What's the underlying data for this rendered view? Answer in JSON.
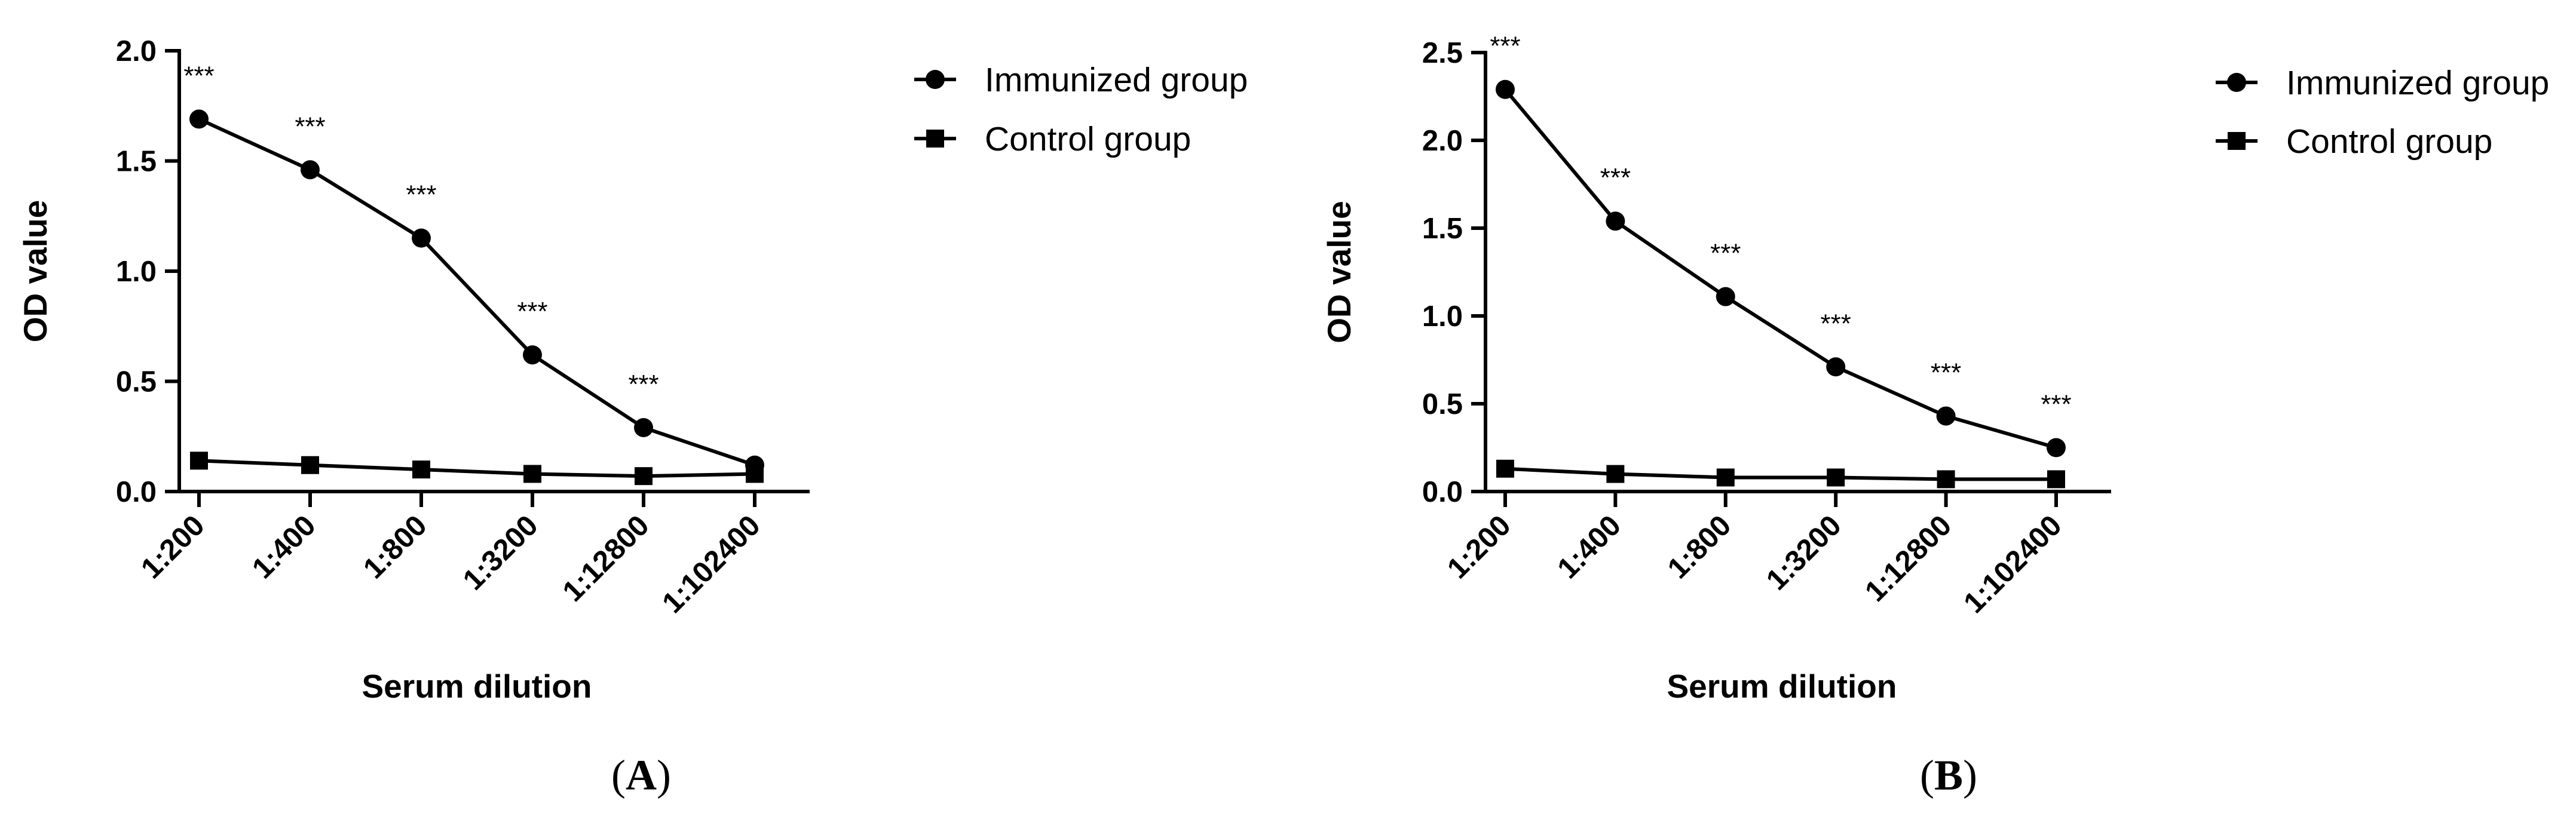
{
  "chart_data": [
    {
      "type": "line",
      "panel_label": "A",
      "xlabel": "Serum dilution",
      "ylabel": "OD value",
      "categories": [
        "1:200",
        "1:400",
        "1:800",
        "1:3200",
        "1:12800",
        "1:102400"
      ],
      "ylim": [
        0,
        2.0
      ],
      "yticks": [
        0.0,
        0.5,
        1.0,
        1.5,
        2.0
      ],
      "ytick_labels": [
        "0.0",
        "0.5",
        "1.0",
        "1.5",
        "2.0"
      ],
      "series": [
        {
          "name": "Immunized group",
          "marker": "circle",
          "values": [
            1.69,
            1.46,
            1.15,
            0.62,
            0.29,
            0.12
          ]
        },
        {
          "name": "Control group",
          "marker": "square",
          "values": [
            0.14,
            0.12,
            0.1,
            0.08,
            0.07,
            0.08
          ]
        }
      ],
      "annotations": [
        "***",
        "***",
        "***",
        "***",
        "***",
        null
      ],
      "legend_position": "right"
    },
    {
      "type": "line",
      "panel_label": "B",
      "xlabel": "Serum dilution",
      "ylabel": "OD value",
      "categories": [
        "1:200",
        "1:400",
        "1:800",
        "1:3200",
        "1:12800",
        "1:102400"
      ],
      "ylim": [
        0,
        2.5
      ],
      "yticks": [
        0.0,
        0.5,
        1.0,
        1.5,
        2.0,
        2.5
      ],
      "ytick_labels": [
        "0.0",
        "0.5",
        "1.0",
        "1.5",
        "2.0",
        "2.5"
      ],
      "series": [
        {
          "name": "Immunized group",
          "marker": "circle",
          "values": [
            2.29,
            1.54,
            1.11,
            0.71,
            0.43,
            0.25
          ]
        },
        {
          "name": "Control group",
          "marker": "square",
          "values": [
            0.13,
            0.1,
            0.08,
            0.08,
            0.07,
            0.07
          ]
        }
      ],
      "annotations": [
        "***",
        "***",
        "***",
        "***",
        "***",
        "***"
      ],
      "legend_position": "right"
    }
  ]
}
